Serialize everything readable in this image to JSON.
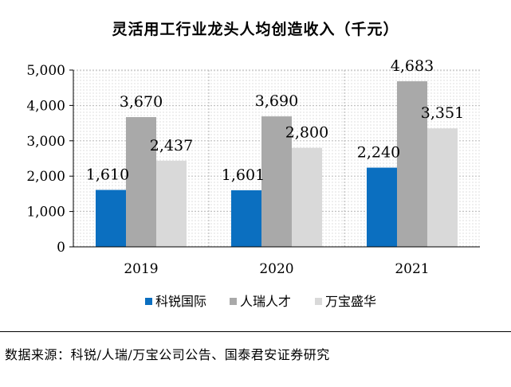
{
  "chart_data": {
    "type": "bar",
    "title": "灵活用工行业龙头人均创造收入（千元）",
    "categories": [
      "2019",
      "2020",
      "2021"
    ],
    "series": [
      {
        "name": "科锐国际",
        "values": [
          1610,
          1601,
          2240
        ],
        "color": "#0b6fc0"
      },
      {
        "name": "人瑞人才",
        "values": [
          3670,
          3690,
          4683
        ],
        "color": "#a9a9a9"
      },
      {
        "name": "万宝盛华",
        "values": [
          2437,
          2800,
          3351
        ],
        "color": "#d9d9d9"
      }
    ],
    "value_labels": [
      [
        "1,610",
        "1,601",
        "2,240"
      ],
      [
        "3,670",
        "3,690",
        "4,683"
      ],
      [
        "2,437",
        "2,800",
        "3,351"
      ]
    ],
    "yticks": [
      "0",
      "1,000",
      "2,000",
      "3,000",
      "4,000",
      "5,000"
    ],
    "ytick_values": [
      0,
      1000,
      2000,
      3000,
      4000,
      5000
    ],
    "ylim": [
      0,
      5000
    ],
    "grid": true,
    "legend_position": "bottom",
    "xlabel": "",
    "ylabel": ""
  },
  "source_text": "数据来源：科锐/人瑞/万宝公司公告、国泰君安证券研究"
}
